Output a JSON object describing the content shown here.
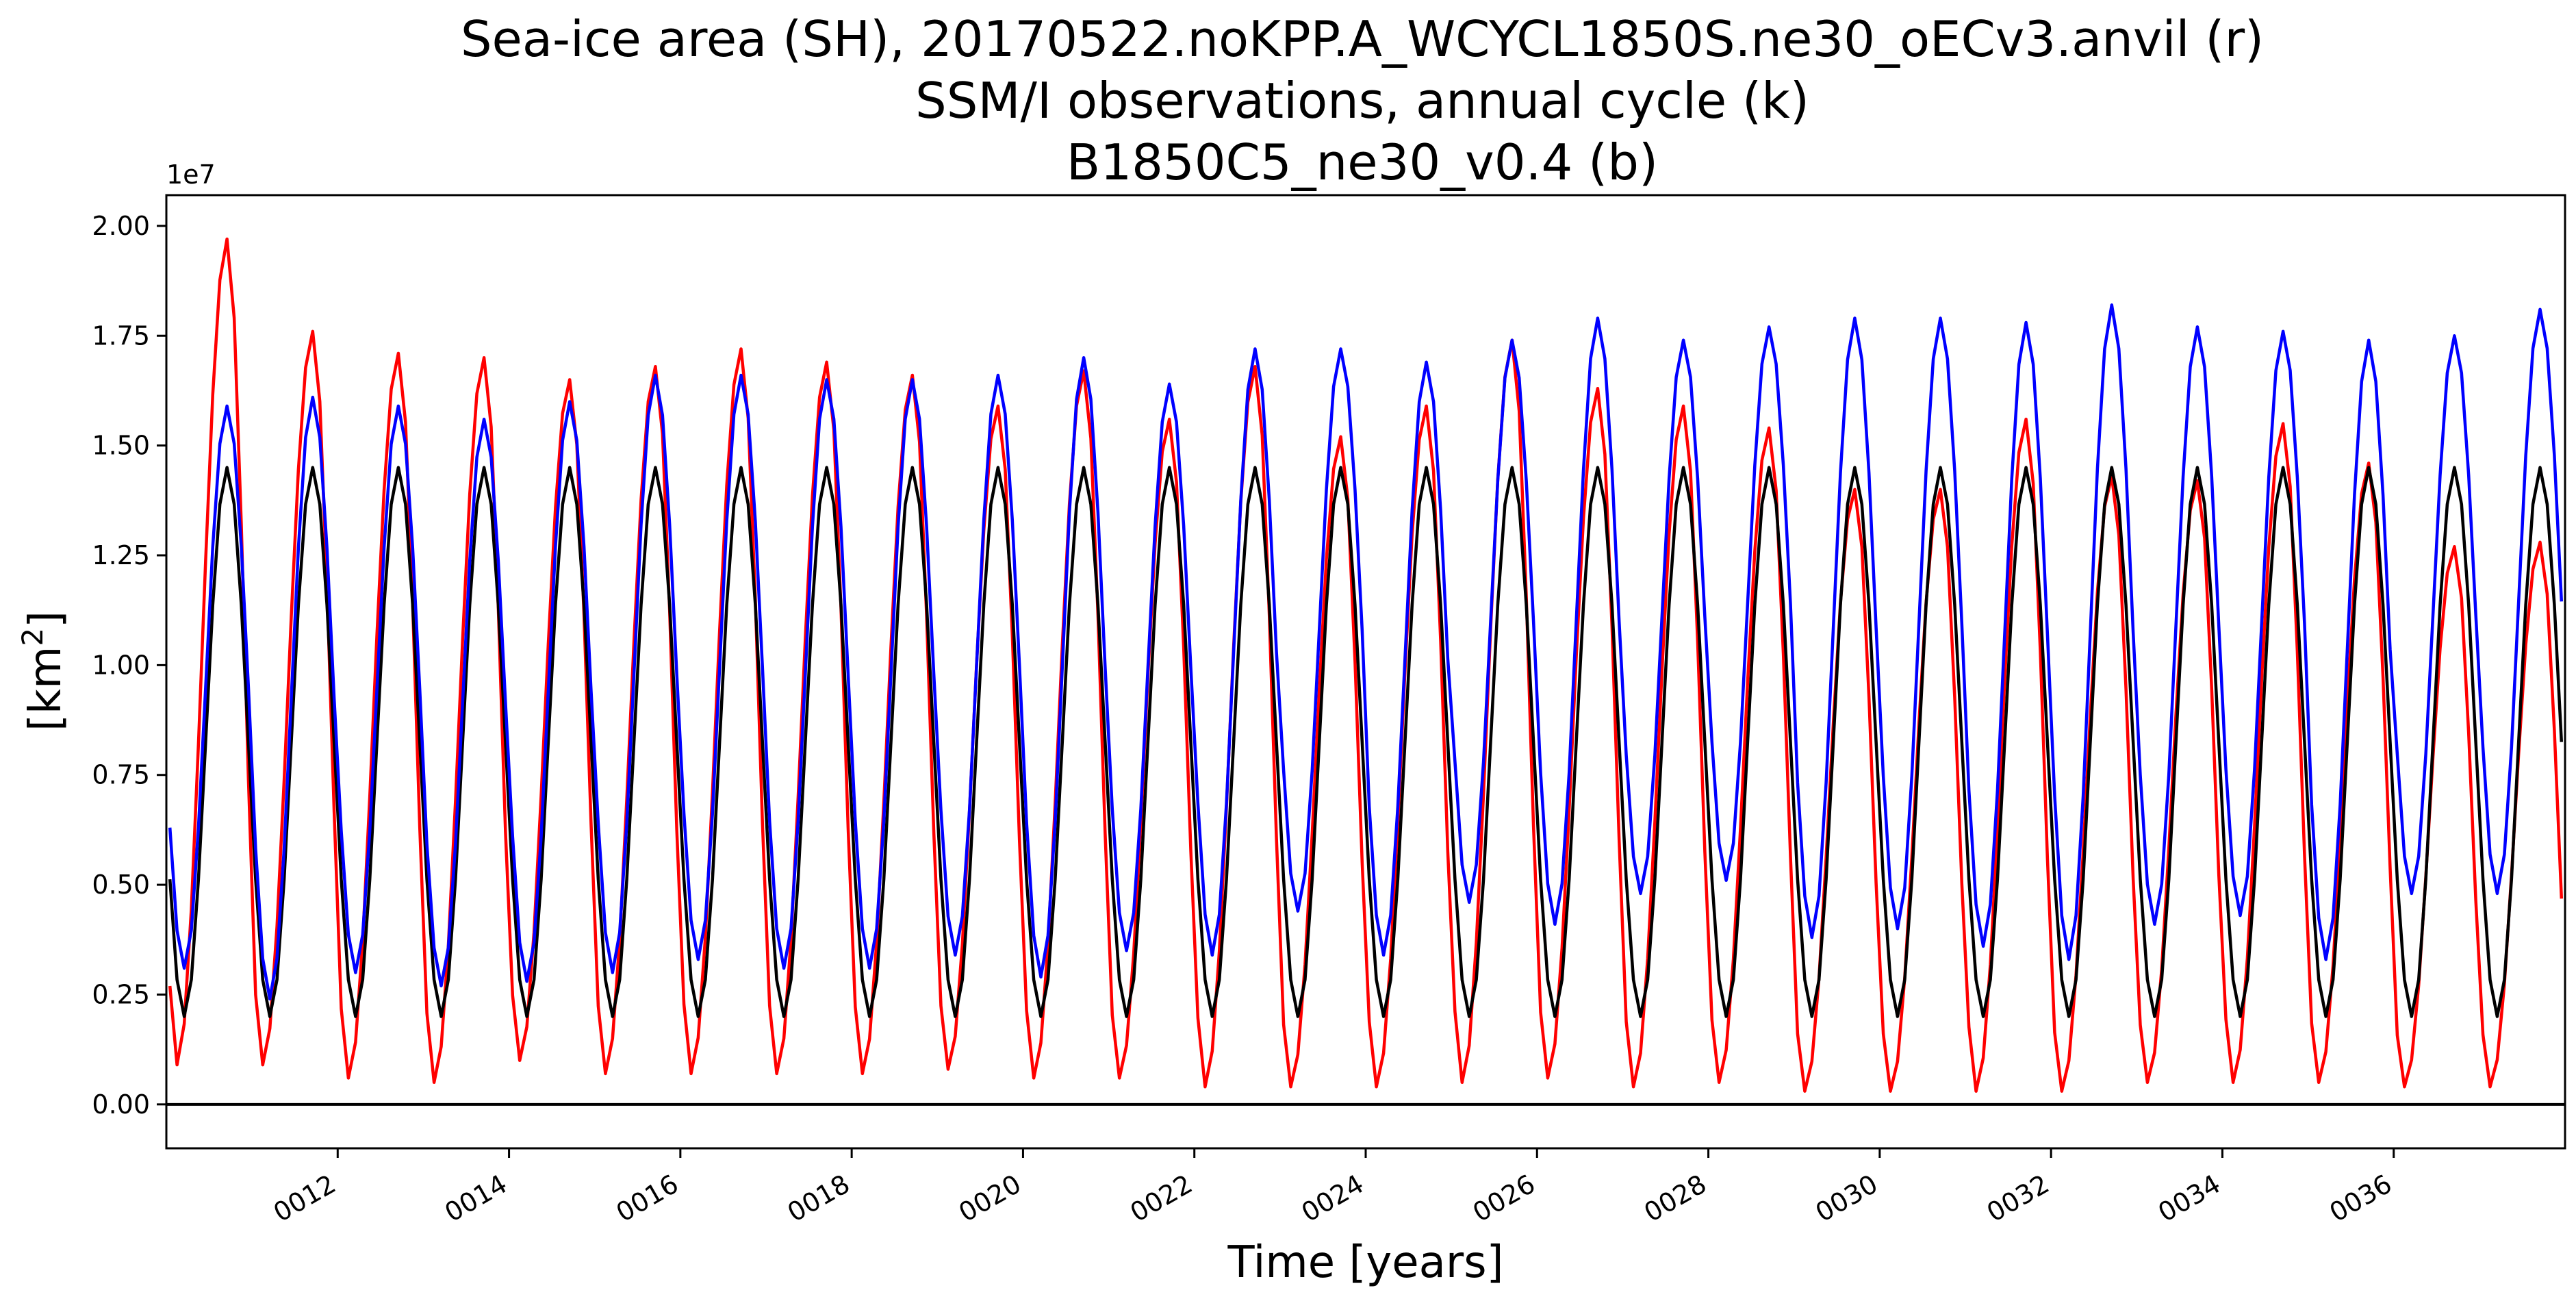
{
  "chart_data": {
    "type": "line",
    "title_lines": [
      "Sea-ice area (SH), 20170522.noKPP.A_WCYCL1850S.ne30_oECv3.anvil (r)",
      "SSM/I observations, annual cycle (k)",
      "B1850C5_ne30_v0.4 (b)"
    ],
    "xlabel": "Time [years]",
    "ylabel_base": "[km",
    "ylabel_sup": "2",
    "ylabel_close": "]",
    "y_offset_label": "1e7",
    "xlim": [
      10.0,
      38.0
    ],
    "ylim": [
      -0.1,
      2.07
    ],
    "y_scale": 10000000,
    "x_ticks": [
      {
        "value": 12,
        "label": "0012"
      },
      {
        "value": 14,
        "label": "0014"
      },
      {
        "value": 16,
        "label": "0016"
      },
      {
        "value": 18,
        "label": "0018"
      },
      {
        "value": 20,
        "label": "0020"
      },
      {
        "value": 22,
        "label": "0022"
      },
      {
        "value": 24,
        "label": "0024"
      },
      {
        "value": 26,
        "label": "0026"
      },
      {
        "value": 28,
        "label": "0028"
      },
      {
        "value": 30,
        "label": "0030"
      },
      {
        "value": 32,
        "label": "0032"
      },
      {
        "value": 34,
        "label": "0034"
      },
      {
        "value": 36,
        "label": "0036"
      }
    ],
    "y_ticks": [
      {
        "value": 0.0,
        "label": "0.00"
      },
      {
        "value": 0.25,
        "label": "0.25"
      },
      {
        "value": 0.5,
        "label": "0.50"
      },
      {
        "value": 0.75,
        "label": "0.75"
      },
      {
        "value": 1.0,
        "label": "1.00"
      },
      {
        "value": 1.25,
        "label": "1.25"
      },
      {
        "value": 1.5,
        "label": "1.50"
      },
      {
        "value": 1.75,
        "label": "1.75"
      },
      {
        "value": 2.0,
        "label": "2.00"
      }
    ],
    "zero_line": 0.0,
    "grid": false,
    "legend": "none",
    "series": [
      {
        "color": "#ff0000",
        "peak_month": 8,
        "trough_month": 1,
        "annual_max": [
          1.97,
          1.76,
          1.71,
          1.7,
          1.65,
          1.68,
          1.72,
          1.69,
          1.66,
          1.59,
          1.67,
          1.56,
          1.68,
          1.52,
          1.59,
          1.74,
          1.63,
          1.59,
          1.54,
          1.4,
          1.4,
          1.56,
          1.43,
          1.42,
          1.55,
          1.46,
          1.27,
          1.28
        ],
        "annual_min": [
          0.09,
          0.09,
          0.06,
          0.05,
          0.1,
          0.07,
          0.07,
          0.07,
          0.07,
          0.08,
          0.06,
          0.06,
          0.04,
          0.04,
          0.04,
          0.05,
          0.06,
          0.04,
          0.05,
          0.03,
          0.03,
          0.03,
          0.03,
          0.05,
          0.05,
          0.05,
          0.04,
          0.04
        ]
      },
      {
        "color": "#000000",
        "peak_month": 8,
        "trough_month": 2,
        "annual_max": [
          1.45,
          1.45,
          1.45,
          1.45,
          1.45,
          1.45,
          1.45,
          1.45,
          1.45,
          1.45,
          1.45,
          1.45,
          1.45,
          1.45,
          1.45,
          1.45,
          1.45,
          1.45,
          1.45,
          1.45,
          1.45,
          1.45,
          1.45,
          1.45,
          1.45,
          1.45,
          1.45,
          1.45
        ],
        "annual_min": [
          0.2,
          0.2,
          0.2,
          0.2,
          0.2,
          0.2,
          0.2,
          0.2,
          0.2,
          0.2,
          0.2,
          0.2,
          0.2,
          0.2,
          0.2,
          0.2,
          0.2,
          0.2,
          0.2,
          0.2,
          0.2,
          0.2,
          0.2,
          0.2,
          0.2,
          0.2,
          0.2,
          0.2
        ]
      },
      {
        "color": "#0000ff",
        "peak_month": 8,
        "trough_month": 2,
        "annual_max": [
          1.59,
          1.61,
          1.59,
          1.56,
          1.6,
          1.66,
          1.66,
          1.65,
          1.65,
          1.66,
          1.7,
          1.64,
          1.72,
          1.72,
          1.69,
          1.74,
          1.79,
          1.74,
          1.77,
          1.79,
          1.79,
          1.78,
          1.82,
          1.77,
          1.76,
          1.74,
          1.75,
          1.81
        ],
        "annual_min": [
          0.31,
          0.24,
          0.3,
          0.27,
          0.28,
          0.3,
          0.33,
          0.31,
          0.31,
          0.34,
          0.29,
          0.35,
          0.34,
          0.44,
          0.34,
          0.46,
          0.41,
          0.48,
          0.51,
          0.38,
          0.4,
          0.36,
          0.33,
          0.41,
          0.43,
          0.33,
          0.48,
          0.48
        ]
      }
    ]
  }
}
